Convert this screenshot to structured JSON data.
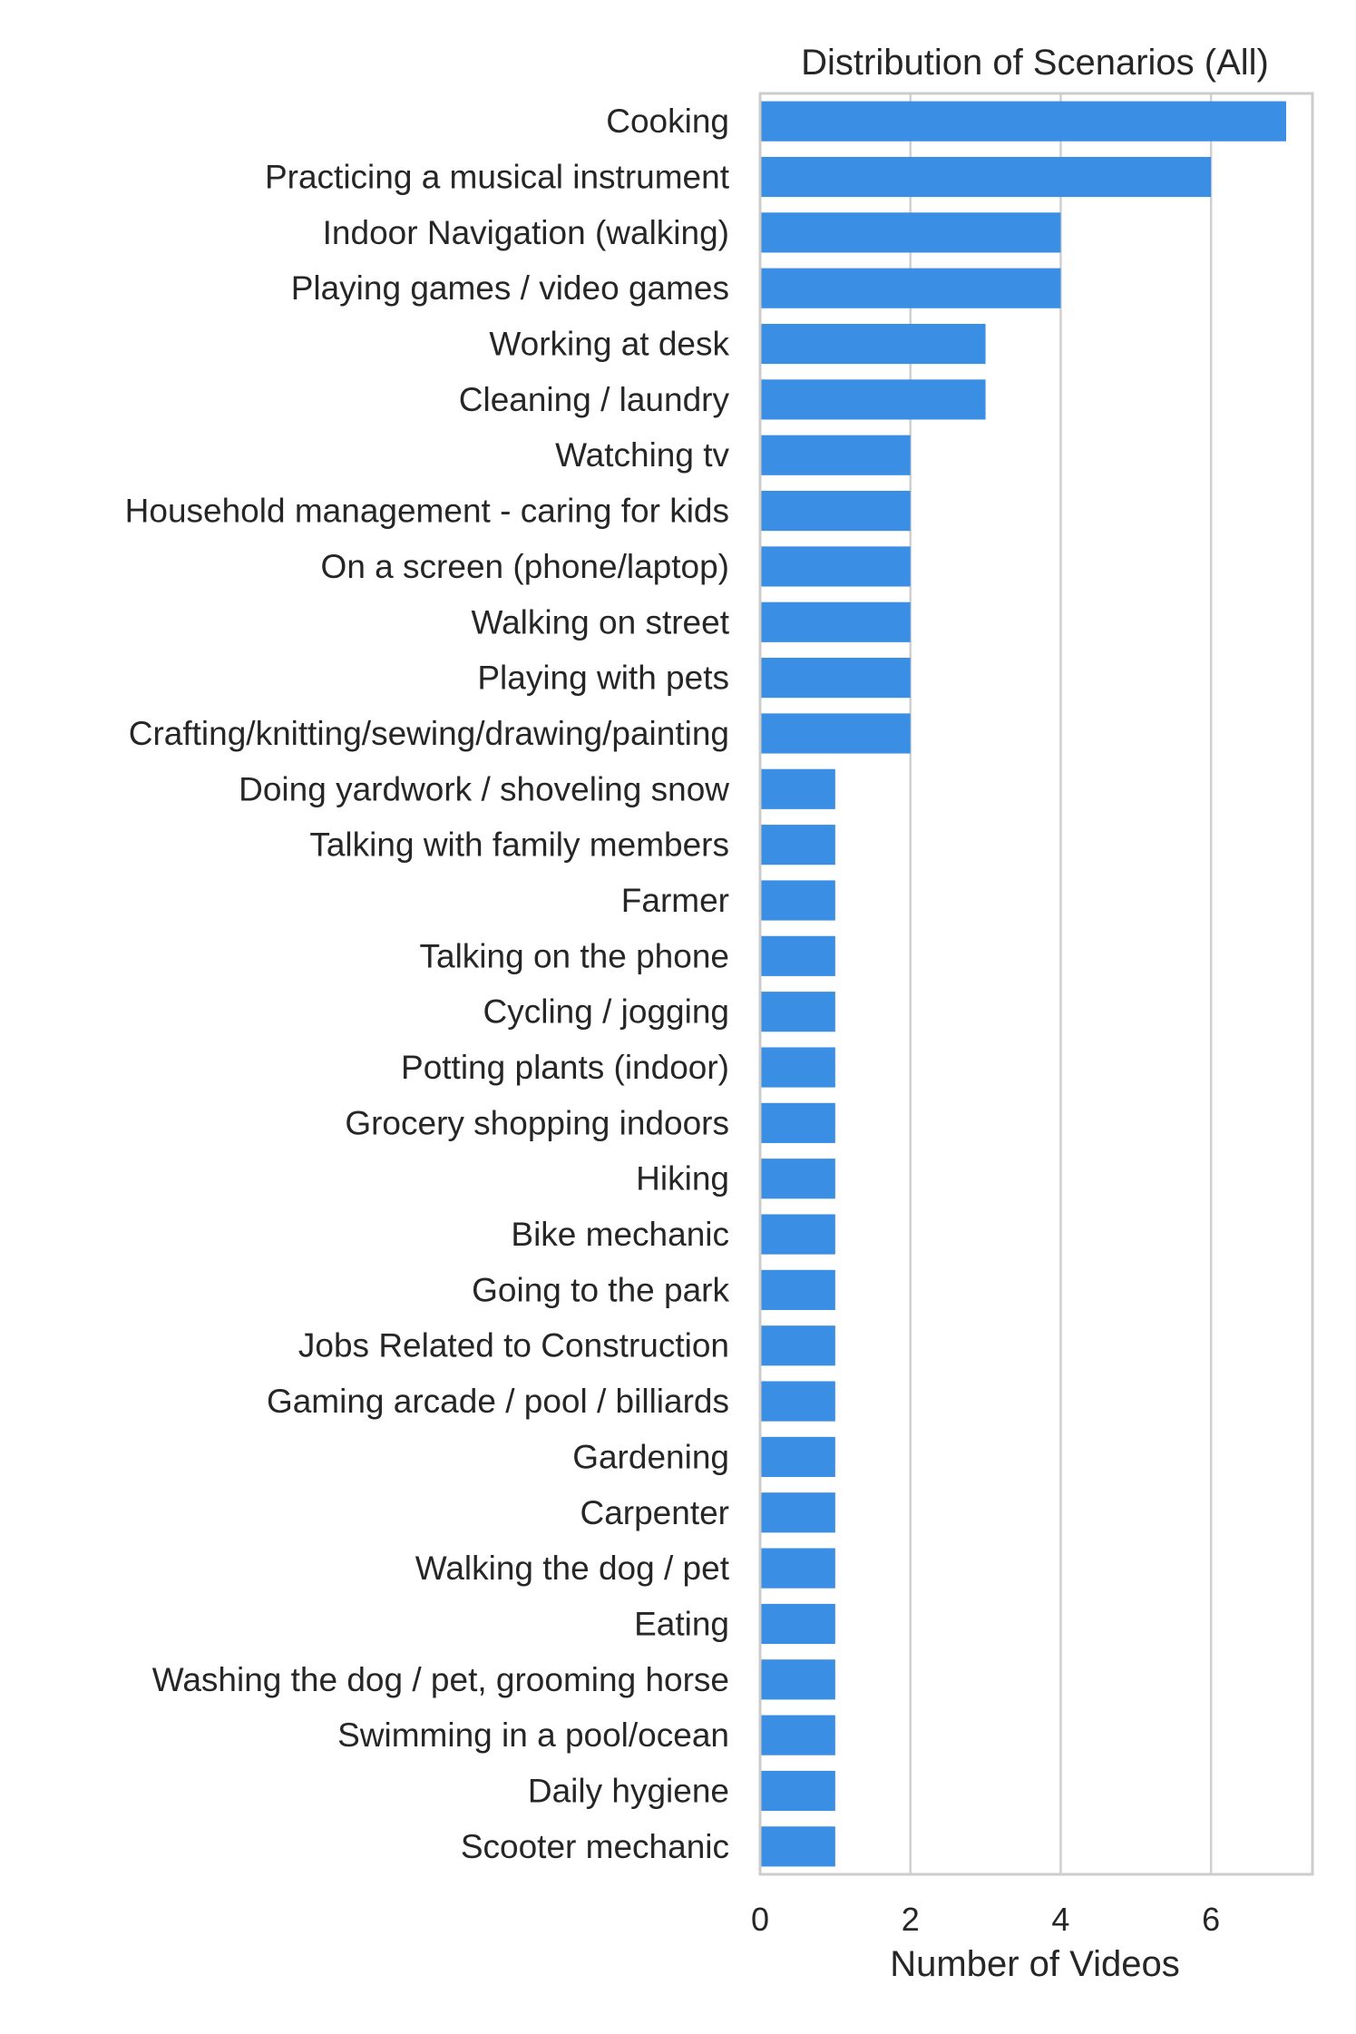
{
  "chart_data": {
    "type": "bar",
    "orientation": "horizontal",
    "title": "Distribution of Scenarios (All)",
    "xlabel": "Number of Videos",
    "ylabel": "",
    "xlim": [
      0,
      7.35
    ],
    "xticks": [
      0,
      2,
      4,
      6
    ],
    "grid": "vertical",
    "bar_color": "#3a8fe4",
    "categories": [
      "Cooking",
      "Practicing a musical instrument",
      "Indoor Navigation (walking)",
      "Playing games / video games",
      "Working at desk",
      "Cleaning / laundry",
      "Watching tv",
      "Household management - caring for kids",
      "On a screen (phone/laptop)",
      "Walking on street",
      "Playing with pets",
      "Crafting/knitting/sewing/drawing/painting",
      "Doing yardwork / shoveling snow",
      "Talking with family members",
      "Farmer",
      "Talking on the phone",
      "Cycling / jogging",
      "Potting plants (indoor)",
      "Grocery shopping indoors",
      "Hiking",
      "Bike mechanic",
      "Going to the park",
      "Jobs Related to Construction",
      "Gaming arcade / pool / billiards",
      "Gardening",
      "Carpenter",
      "Walking the dog / pet",
      "Eating",
      "Washing the dog / pet, grooming horse",
      "Swimming in a pool/ocean",
      "Daily hygiene",
      "Scooter mechanic"
    ],
    "values": [
      7,
      6,
      4,
      4,
      3,
      3,
      2,
      2,
      2,
      2,
      2,
      2,
      1,
      1,
      1,
      1,
      1,
      1,
      1,
      1,
      1,
      1,
      1,
      1,
      1,
      1,
      1,
      1,
      1,
      1,
      1,
      1
    ]
  }
}
